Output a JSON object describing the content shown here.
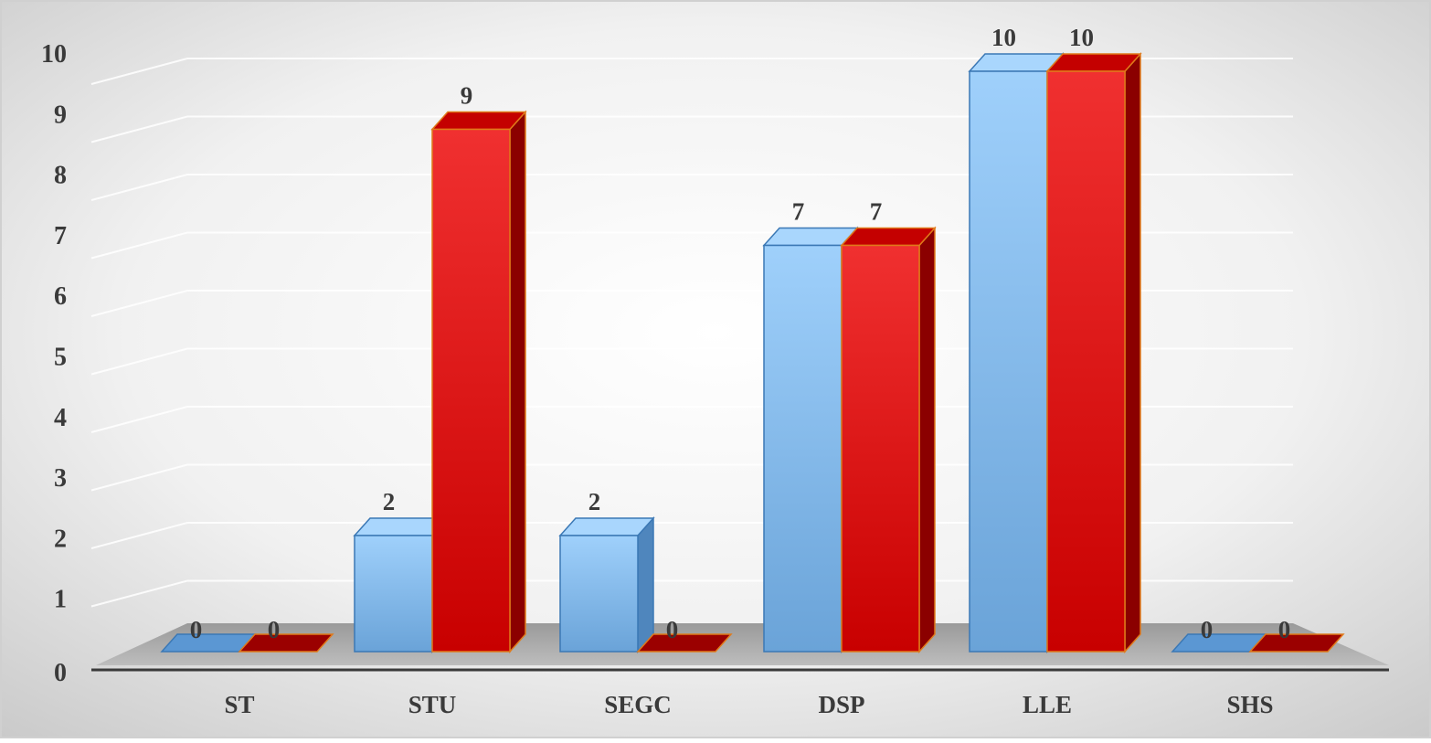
{
  "chart_data": {
    "type": "bar",
    "style": "3d-clustered-column",
    "categories": [
      "ST",
      "STU",
      "SEGC",
      "DSP",
      "LLE",
      "SHS"
    ],
    "series": [
      {
        "values": [
          0,
          2,
          2,
          7,
          10,
          0
        ],
        "color": "#7fb8ea"
      },
      {
        "values": [
          0,
          9,
          0,
          7,
          10,
          0
        ],
        "color": "#d40000"
      }
    ],
    "data_labels": [
      [
        "0",
        "2",
        "2",
        "7",
        "10",
        "0"
      ],
      [
        "0",
        "9",
        "0",
        "7",
        "10",
        "0"
      ]
    ],
    "yticks": [
      "0",
      "1",
      "2",
      "3",
      "4",
      "5",
      "6",
      "7",
      "8",
      "9",
      "10"
    ],
    "ylim": [
      0,
      10
    ],
    "grid": true,
    "legend": "none",
    "title": "",
    "xlabel": "",
    "ylabel": ""
  }
}
